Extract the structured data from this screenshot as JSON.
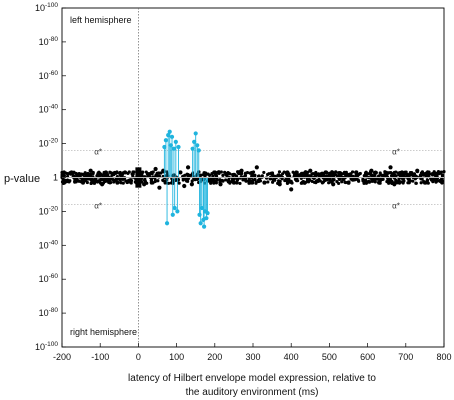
{
  "chart_data": {
    "type": "scatter",
    "xlabel": "latency of Hilbert envelope model expression, relative to\nthe auditory environment (ms)",
    "ylabel": "p-value",
    "xlim": [
      -200,
      800
    ],
    "xticks": [
      -200,
      -100,
      0,
      100,
      200,
      300,
      400,
      500,
      600,
      700,
      800
    ],
    "yticks": [
      {
        "v": 100,
        "base": "10",
        "exp": "-100"
      },
      {
        "v": 80,
        "base": "10",
        "exp": "-80"
      },
      {
        "v": 60,
        "base": "10",
        "exp": "-60"
      },
      {
        "v": 40,
        "base": "10",
        "exp": "-40"
      },
      {
        "v": 20,
        "base": "10",
        "exp": "-20"
      },
      {
        "v": 0,
        "base": "1",
        "exp": ""
      },
      {
        "v": -20,
        "base": "10",
        "exp": "-20"
      },
      {
        "v": -40,
        "base": "10",
        "exp": "-40"
      },
      {
        "v": -60,
        "base": "10",
        "exp": "-60"
      },
      {
        "v": -80,
        "base": "10",
        "exp": "-80"
      },
      {
        "v": -100,
        "base": "10",
        "exp": "-100"
      }
    ],
    "ylim": [
      -100,
      100
    ],
    "scale_note": "signed -log10(p): positive = left hemisphere, negative = right hemisphere",
    "annotations": {
      "top_region": "left hemisphere",
      "bottom_region": "right hemisphere",
      "threshold_label": "α*",
      "threshold_value_upper": 16,
      "threshold_value_lower": -16
    },
    "series": [
      {
        "color": "#000000",
        "description_key": "all",
        "points": [
          [
            -195,
            1
          ],
          [
            -185,
            -2
          ],
          [
            -175,
            3
          ],
          [
            -165,
            -1
          ],
          [
            -155,
            2
          ],
          [
            -145,
            -3
          ],
          [
            -135,
            1
          ],
          [
            -125,
            4
          ],
          [
            -115,
            -2
          ],
          [
            -105,
            2
          ],
          [
            -95,
            -4
          ],
          [
            -85,
            3
          ],
          [
            -75,
            -1
          ],
          [
            -65,
            2
          ],
          [
            -55,
            -3
          ],
          [
            -45,
            1
          ],
          [
            -35,
            3
          ],
          [
            -25,
            -2
          ],
          [
            -15,
            2
          ],
          [
            -5,
            -1
          ],
          [
            5,
            3
          ],
          [
            15,
            -4
          ],
          [
            25,
            2
          ],
          [
            35,
            -3
          ],
          [
            45,
            5
          ],
          [
            55,
            -6
          ],
          [
            65,
            4
          ],
          [
            110,
            3
          ],
          [
            120,
            -5
          ],
          [
            130,
            6
          ],
          [
            140,
            -4
          ],
          [
            200,
            3
          ],
          [
            215,
            -4
          ],
          [
            230,
            2
          ],
          [
            250,
            -3
          ],
          [
            270,
            4
          ],
          [
            290,
            -2
          ],
          [
            310,
            6
          ],
          [
            330,
            -3
          ],
          [
            350,
            2
          ],
          [
            370,
            -4
          ],
          [
            390,
            3
          ],
          [
            400,
            -7
          ],
          [
            410,
            2
          ],
          [
            430,
            -3
          ],
          [
            450,
            4
          ],
          [
            470,
            -2
          ],
          [
            490,
            3
          ],
          [
            510,
            -4
          ],
          [
            530,
            2
          ],
          [
            550,
            -3
          ],
          [
            570,
            3
          ],
          [
            590,
            -2
          ],
          [
            610,
            4
          ],
          [
            630,
            -3
          ],
          [
            650,
            2
          ],
          [
            660,
            6
          ],
          [
            670,
            -4
          ],
          [
            690,
            3
          ],
          [
            710,
            -2
          ],
          [
            730,
            4
          ],
          [
            750,
            -3
          ],
          [
            770,
            2
          ],
          [
            790,
            -2
          ]
        ]
      },
      {
        "color": "#1fb4de",
        "description_key": "significant",
        "points": [
          [
            68,
            18
          ],
          [
            72,
            22
          ],
          [
            75,
            -27
          ],
          [
            78,
            25
          ],
          [
            82,
            27
          ],
          [
            85,
            19
          ],
          [
            88,
            24
          ],
          [
            90,
            -22
          ],
          [
            93,
            17
          ],
          [
            95,
            -18
          ],
          [
            98,
            21
          ],
          [
            102,
            -20
          ],
          [
            105,
            18
          ],
          [
            142,
            17
          ],
          [
            146,
            21
          ],
          [
            150,
            26
          ],
          [
            154,
            19
          ],
          [
            158,
            16
          ],
          [
            160,
            -22
          ],
          [
            163,
            -27
          ],
          [
            166,
            -18
          ],
          [
            170,
            -25
          ],
          [
            172,
            -29
          ],
          [
            175,
            -20
          ],
          [
            178,
            -24
          ],
          [
            181,
            -21
          ]
        ]
      }
    ]
  }
}
